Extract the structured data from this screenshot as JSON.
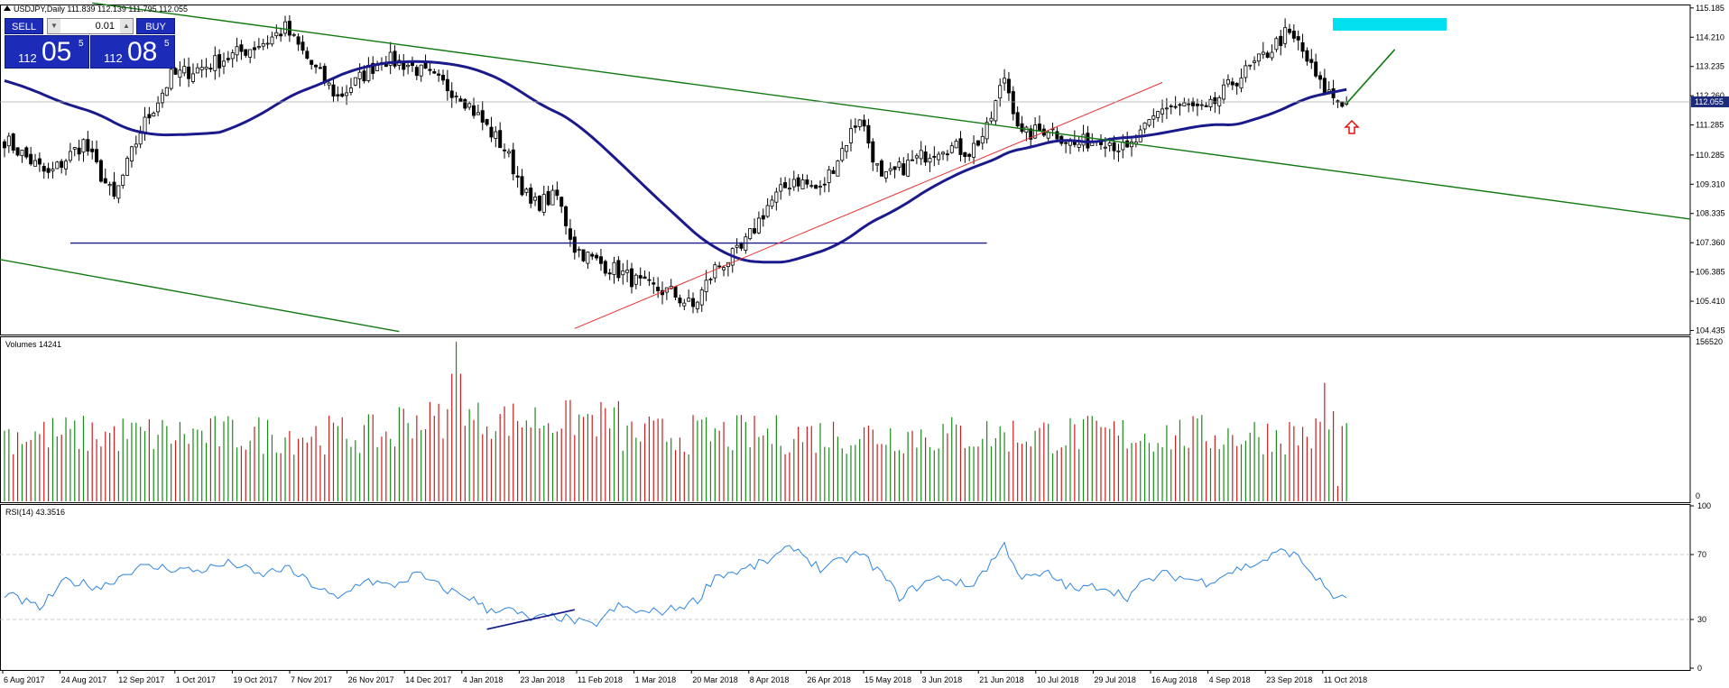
{
  "header": {
    "symbol_line": "USDJPY,Daily  111.839 112.139 111.795 112.055"
  },
  "trade_panel": {
    "sell_label": "SELL",
    "buy_label": "BUY",
    "lot_value": "0.01",
    "sell_price_small": "112",
    "sell_price_big": "05",
    "sell_price_sup": "5",
    "buy_price_small": "112",
    "buy_price_big": "08",
    "buy_price_sup": "5"
  },
  "colors": {
    "bull": "#1a8a1a",
    "bear": "#c81e1e",
    "ma": "#1a1a8c",
    "channel": "#127a12",
    "trend": "#e83030",
    "support": "#1a1a8c",
    "target_box": "#00e0ee",
    "rsi_line": "#2e86de",
    "rsi_divergence": "#101a8a",
    "arrow": "#e01010",
    "current_price_bg": "#1c2b7a"
  },
  "chart_data": [
    {
      "type": "candlestick",
      "name": "price",
      "current_price": "112.055",
      "y_ticks": [
        "115.185",
        "114.210",
        "113.235",
        "112.260",
        "111.285",
        "110.285",
        "109.310",
        "108.335",
        "107.360",
        "106.385",
        "105.410",
        "104.435"
      ],
      "ylim": [
        104.3,
        115.3
      ],
      "x_labels": [
        "6 Aug 2017",
        "24 Aug 2017",
        "12 Sep 2017",
        "1 Oct 2017",
        "19 Oct 2017",
        "7 Nov 2017",
        "26 Nov 2017",
        "14 Dec 2017",
        "4 Jan 2018",
        "23 Jan 2018",
        "11 Feb 2018",
        "1 Mar 2018",
        "20 Mar 2018",
        "8 Apr 2018",
        "26 Apr 2018",
        "15 May 2018",
        "3 Jun 2018",
        "21 Jun 2018",
        "10 Jul 2018",
        "29 Jul 2018",
        "16 Aug 2018",
        "4 Sep 2018",
        "23 Sep 2018",
        "11 Oct 2018"
      ],
      "close_path": [
        [
          0,
          110.8
        ],
        [
          10,
          109.6
        ],
        [
          18,
          110.7
        ],
        [
          25,
          108.8
        ],
        [
          31,
          111.1
        ],
        [
          38,
          112.9
        ],
        [
          45,
          113.2
        ],
        [
          52,
          113.6
        ],
        [
          60,
          114.1
        ],
        [
          64,
          114.5
        ],
        [
          70,
          113.3
        ],
        [
          76,
          112.2
        ],
        [
          80,
          112.7
        ],
        [
          86,
          113.5
        ],
        [
          92,
          113.3
        ],
        [
          98,
          112.8
        ],
        [
          104,
          112.3
        ],
        [
          110,
          111.2
        ],
        [
          114,
          110.5
        ],
        [
          120,
          108.6
        ],
        [
          126,
          108.9
        ],
        [
          130,
          107.2
        ],
        [
          134,
          106.8
        ],
        [
          140,
          106.4
        ],
        [
          146,
          105.9
        ],
        [
          152,
          105.7
        ],
        [
          157,
          105.2
        ],
        [
          162,
          106.5
        ],
        [
          168,
          107.1
        ],
        [
          174,
          108.6
        ],
        [
          180,
          109.5
        ],
        [
          186,
          109.1
        ],
        [
          190,
          110.2
        ],
        [
          195,
          111.6
        ],
        [
          200,
          109.4
        ],
        [
          204,
          109.8
        ],
        [
          210,
          110.3
        ],
        [
          214,
          110.6
        ],
        [
          220,
          110.4
        ],
        [
          224,
          111.1
        ],
        [
          228,
          112.9
        ],
        [
          232,
          110.9
        ],
        [
          238,
          111.2
        ],
        [
          244,
          110.6
        ],
        [
          250,
          110.9
        ],
        [
          256,
          110.4
        ],
        [
          260,
          111.1
        ],
        [
          264,
          111.9
        ],
        [
          270,
          111.9
        ],
        [
          274,
          111.7
        ],
        [
          280,
          112.7
        ],
        [
          286,
          113.4
        ],
        [
          292,
          114.3
        ],
        [
          295,
          114.0
        ],
        [
          300,
          112.6
        ],
        [
          304,
          112.1
        ],
        [
          306,
          112.055
        ]
      ],
      "volume": {
        "label": "Volumes 14241",
        "ylim": [
          0,
          156520
        ],
        "y_ticks": [
          "156520",
          "0"
        ]
      },
      "rsi": {
        "label": "RSI(14) 43.3516",
        "ylim": [
          0,
          100
        ],
        "y_ticks": [
          "100",
          "70",
          "30",
          "0"
        ],
        "levels": [
          70,
          30
        ],
        "path": [
          [
            0,
            46
          ],
          [
            8,
            37
          ],
          [
            14,
            54
          ],
          [
            22,
            50
          ],
          [
            30,
            62
          ],
          [
            36,
            62
          ],
          [
            44,
            60
          ],
          [
            52,
            65
          ],
          [
            58,
            57
          ],
          [
            64,
            62
          ],
          [
            70,
            52
          ],
          [
            76,
            42
          ],
          [
            82,
            55
          ],
          [
            88,
            50
          ],
          [
            94,
            58
          ],
          [
            100,
            49
          ],
          [
            106,
            44
          ],
          [
            110,
            36
          ],
          [
            114,
            37
          ],
          [
            120,
            30
          ],
          [
            126,
            32
          ],
          [
            134,
            26
          ],
          [
            140,
            38
          ],
          [
            146,
            34
          ],
          [
            152,
            36
          ],
          [
            158,
            42
          ],
          [
            162,
            57
          ],
          [
            168,
            60
          ],
          [
            174,
            66
          ],
          [
            180,
            75
          ],
          [
            186,
            61
          ],
          [
            190,
            65
          ],
          [
            195,
            71
          ],
          [
            200,
            58
          ],
          [
            204,
            44
          ],
          [
            210,
            53
          ],
          [
            214,
            56
          ],
          [
            220,
            50
          ],
          [
            224,
            62
          ],
          [
            228,
            76
          ],
          [
            232,
            55
          ],
          [
            238,
            58
          ],
          [
            244,
            48
          ],
          [
            250,
            51
          ],
          [
            256,
            44
          ],
          [
            260,
            53
          ],
          [
            264,
            58
          ],
          [
            270,
            55
          ],
          [
            274,
            53
          ],
          [
            280,
            60
          ],
          [
            286,
            65
          ],
          [
            292,
            73
          ],
          [
            295,
            68
          ],
          [
            300,
            53
          ],
          [
            304,
            42
          ],
          [
            306,
            43.35
          ]
        ]
      }
    }
  ]
}
